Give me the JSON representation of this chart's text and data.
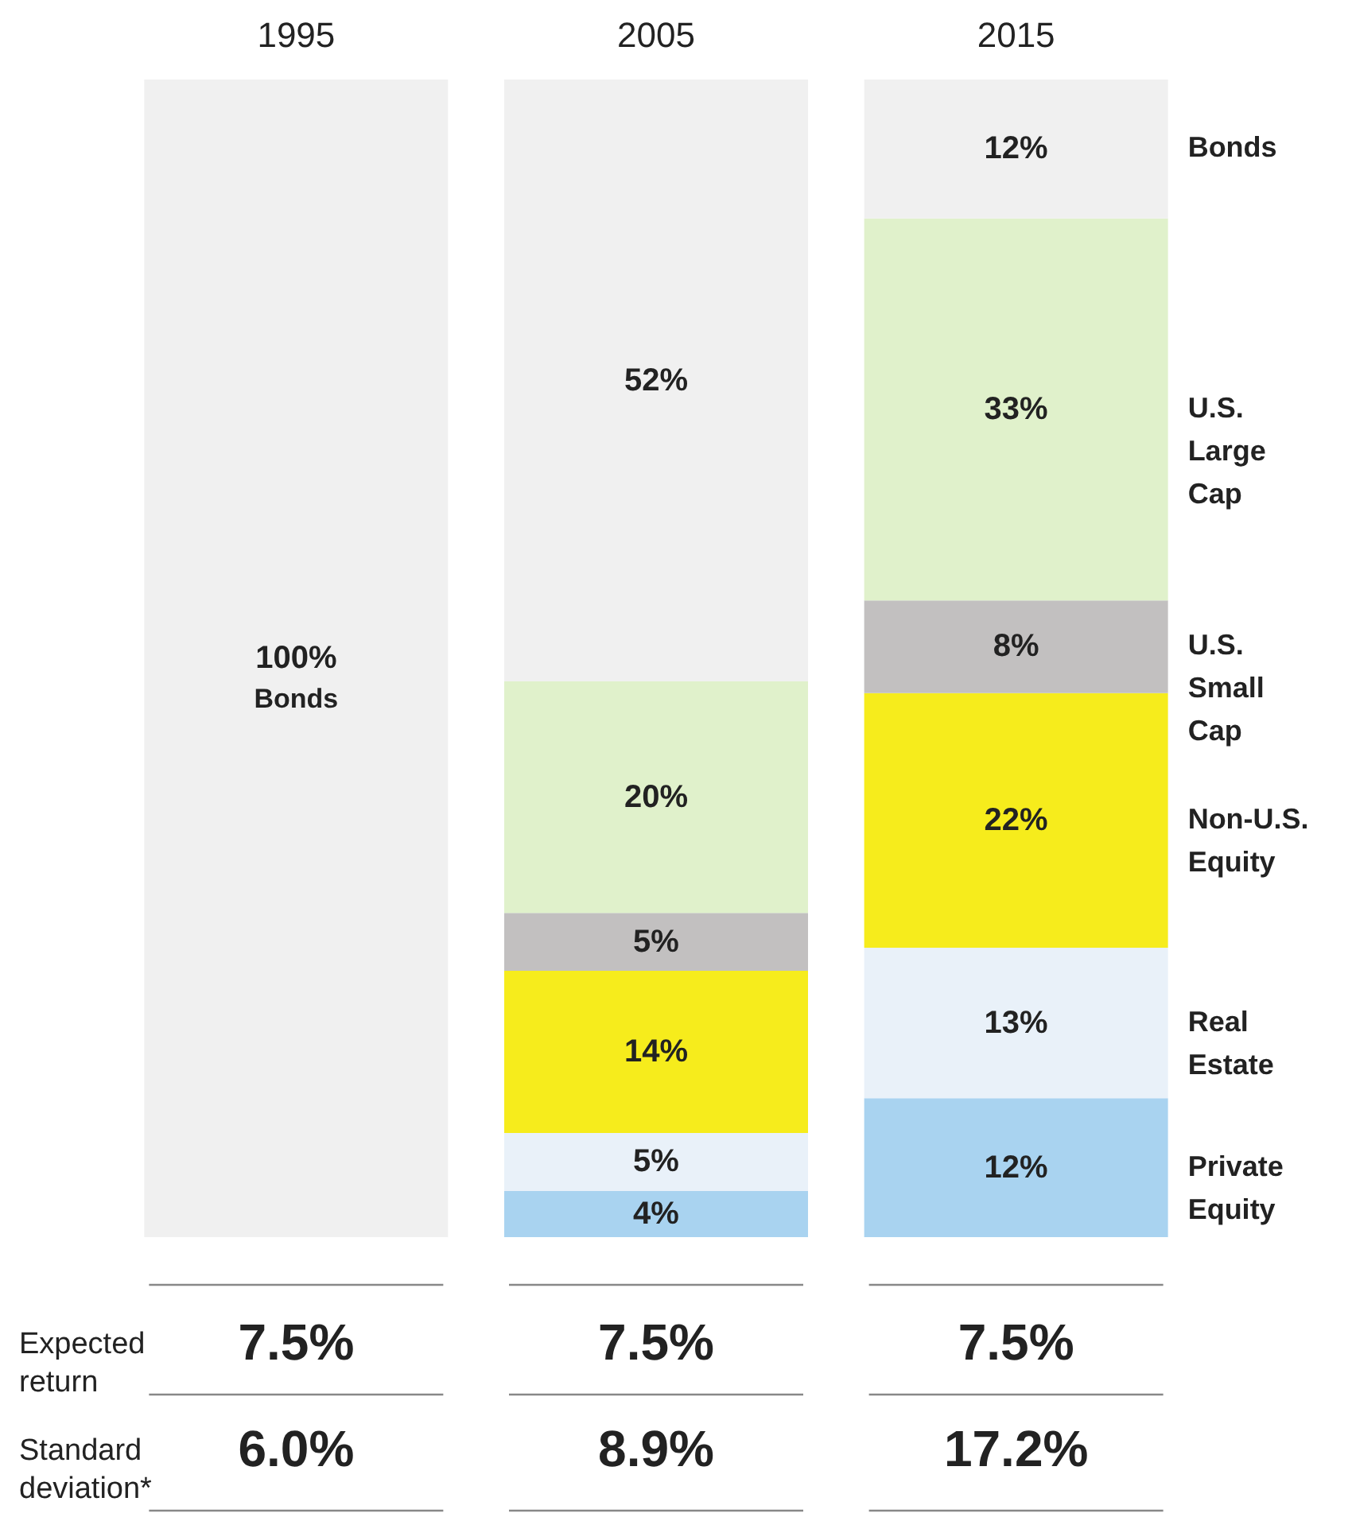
{
  "chart_data": {
    "type": "bar",
    "stacked": true,
    "categories": [
      "1995",
      "2005",
      "2015"
    ],
    "ylim": [
      0,
      100
    ],
    "tick_labels": "x",
    "legend": false,
    "series": [
      {
        "name": "Private Equity",
        "color": "#a9d3f0",
        "values": [
          0,
          4,
          12
        ],
        "value_labels": [
          null,
          "4%",
          "12%"
        ]
      },
      {
        "name": "Real Estate",
        "color": "#e9f1f9",
        "values": [
          0,
          5,
          13
        ],
        "value_labels": [
          null,
          "5%",
          "13%"
        ]
      },
      {
        "name": "Non-U.S. Equity",
        "color": "#f6ec1c",
        "values": [
          0,
          14,
          22
        ],
        "value_labels": [
          null,
          "14%",
          "22%"
        ]
      },
      {
        "name": "U.S. Small Cap",
        "color": "#c2c0c0",
        "values": [
          0,
          5,
          8
        ],
        "value_labels": [
          null,
          "5%",
          "8%"
        ]
      },
      {
        "name": "U.S. Large Cap",
        "color": "#e0f1cb",
        "values": [
          0,
          20,
          33
        ],
        "value_labels": [
          null,
          "20%",
          "33%"
        ]
      },
      {
        "name": "Bonds",
        "color": "#f0f0f0",
        "values": [
          100,
          52,
          12
        ],
        "value_labels": [
          "100%",
          "52%",
          "12%"
        ]
      }
    ],
    "annotations": [
      "Bonds",
      "Expected return",
      "7.5%",
      "7.5%",
      "7.5%",
      "Standard deviation*",
      "6.0%",
      "8.9%",
      "17.2%"
    ]
  }
}
